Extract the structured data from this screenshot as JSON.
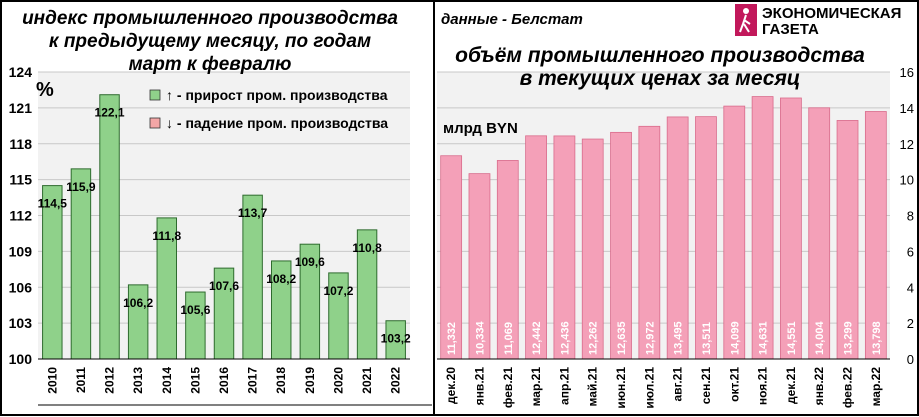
{
  "source_note": "данные - Белстат",
  "logo": {
    "line1": "ЭКОНОМИЧЕСКАЯ",
    "line2": "ГАЗЕТА",
    "icon": "walking-figure-icon",
    "color": "#c2185b"
  },
  "chart_data": [
    {
      "type": "bar",
      "title_lines": [
        "индекс промышленного производства",
        "к предыдущему месяцу, по годам",
        "март к февралю"
      ],
      "ylabel": "%",
      "ylim": [
        100,
        124
      ],
      "yticks": [
        100,
        103,
        106,
        109,
        112,
        115,
        118,
        121,
        124
      ],
      "grid": true,
      "legend_position": "top-right",
      "legend": [
        {
          "label": "↑ - прирост пром. производства",
          "color": "#8fd18a"
        },
        {
          "label": "↓ - падение пром. производства",
          "color": "#f4a6a6"
        }
      ],
      "categories": [
        "2010",
        "2011",
        "2012",
        "2013",
        "2014",
        "2015",
        "2016",
        "2017",
        "2018",
        "2019",
        "2020",
        "2021",
        "2022"
      ],
      "values": [
        114.5,
        115.9,
        122.1,
        106.2,
        111.8,
        105.6,
        107.6,
        113.7,
        108.2,
        109.6,
        107.2,
        110.8,
        103.2
      ],
      "data_labels": [
        "114,5",
        "115,9",
        "122,1",
        "106,2",
        "111,8",
        "105,6",
        "107,6",
        "113,7",
        "108,2",
        "109,6",
        "107,2",
        "110,8",
        "103,2"
      ],
      "bar_color": "#8fd18a",
      "tick_labels": [
        "100",
        "103",
        "106",
        "109",
        "112",
        "115",
        "118",
        "121",
        "124"
      ]
    },
    {
      "type": "bar",
      "title_lines": [
        "объём промышленного производства",
        "в текущих ценах за месяц"
      ],
      "ylabel": "млрд BYN",
      "ylim": [
        0,
        16
      ],
      "yticks": [
        0,
        2,
        4,
        6,
        8,
        10,
        12,
        14,
        16
      ],
      "grid": true,
      "categories": [
        "дек.20",
        "янв.21",
        "фев.21",
        "мар.21",
        "апр.21",
        "май.21",
        "июн.21",
        "июл.21",
        "авг.21",
        "сен.21",
        "окт.21",
        "ноя.21",
        "дек.21",
        "янв.22",
        "фев.22",
        "мар.22"
      ],
      "values": [
        11.332,
        10.334,
        11.069,
        12.442,
        12.436,
        12.262,
        12.635,
        12.972,
        13.495,
        13.511,
        14.099,
        14.631,
        14.551,
        14.004,
        13.299,
        13.798
      ],
      "data_labels": [
        "11,332",
        "10,334",
        "11,069",
        "12,442",
        "12,436",
        "12,262",
        "12,635",
        "12,972",
        "13,495",
        "13,511",
        "14,099",
        "14,631",
        "14,551",
        "14,004",
        "13,299",
        "13,798"
      ],
      "bar_color": "#f4a0b8",
      "tick_labels": [
        "0",
        "2",
        "4",
        "6",
        "8",
        "10",
        "12",
        "14",
        "16"
      ]
    }
  ]
}
